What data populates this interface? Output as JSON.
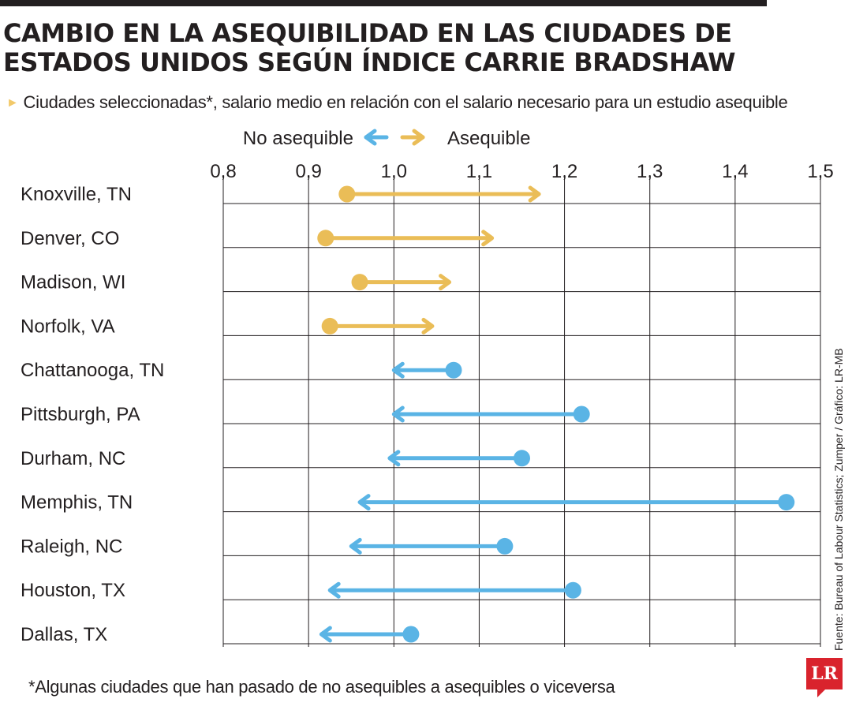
{
  "header": {
    "title": "CAMBIO EN LA ASEQUIBILIDAD EN LAS CIUDADES DE ESTADOS UNIDOS SEGÚN ÍNDICE CARRIE BRADSHAW",
    "subtitle": "Ciudades seleccionadas*, salario medio en relación con el salario necesario para un estudio asequible"
  },
  "footer": {
    "footnote": "*Algunas ciudades que han pasado de no asequibles a asequibles o viceversa",
    "source": "Fuente: Bureau of Labour Statistics; Zumper / Gráfico: LR-MB",
    "logo": "LR"
  },
  "colors": {
    "asequible": "#eabd57",
    "no_asequible": "#5ab4e5",
    "grid": "#231f20"
  },
  "chart_data": {
    "type": "dumbbell-arrow",
    "legend": [
      {
        "label": "No asequible",
        "color": "#5ab4e5",
        "direction": "left",
        "placement": "top-center"
      },
      {
        "label": "Asequible",
        "color": "#eabd57",
        "direction": "right",
        "placement": "top-center"
      }
    ],
    "x_ticks": [
      "0,8",
      "0,9",
      "1,0",
      "1,1",
      "1,2",
      "1,3",
      "1,4",
      "1,5"
    ],
    "x_tick_values": [
      0.8,
      0.9,
      1.0,
      1.1,
      1.2,
      1.3,
      1.4,
      1.5
    ],
    "xlim": [
      0.8,
      1.5
    ],
    "grid": true,
    "cities": [
      {
        "name": "Knoxville, TN",
        "from": 0.945,
        "to": 1.17,
        "status": "asequible"
      },
      {
        "name": "Denver, CO",
        "from": 0.92,
        "to": 1.115,
        "status": "asequible"
      },
      {
        "name": "Madison, WI",
        "from": 0.96,
        "to": 1.065,
        "status": "asequible"
      },
      {
        "name": "Norfolk, VA",
        "from": 0.925,
        "to": 1.045,
        "status": "asequible"
      },
      {
        "name": "Chattanooga, TN",
        "from": 1.07,
        "to": 1.0,
        "status": "no_asequible"
      },
      {
        "name": "Pittsburgh, PA",
        "from": 1.22,
        "to": 1.0,
        "status": "no_asequible"
      },
      {
        "name": "Durham, NC",
        "from": 1.15,
        "to": 0.995,
        "status": "no_asequible"
      },
      {
        "name": "Memphis, TN",
        "from": 1.46,
        "to": 0.96,
        "status": "no_asequible"
      },
      {
        "name": "Raleigh, NC",
        "from": 1.13,
        "to": 0.95,
        "status": "no_asequible"
      },
      {
        "name": "Houston, TX",
        "from": 1.21,
        "to": 0.925,
        "status": "no_asequible"
      },
      {
        "name": "Dallas, TX",
        "from": 1.02,
        "to": 0.915,
        "status": "no_asequible"
      }
    ]
  }
}
